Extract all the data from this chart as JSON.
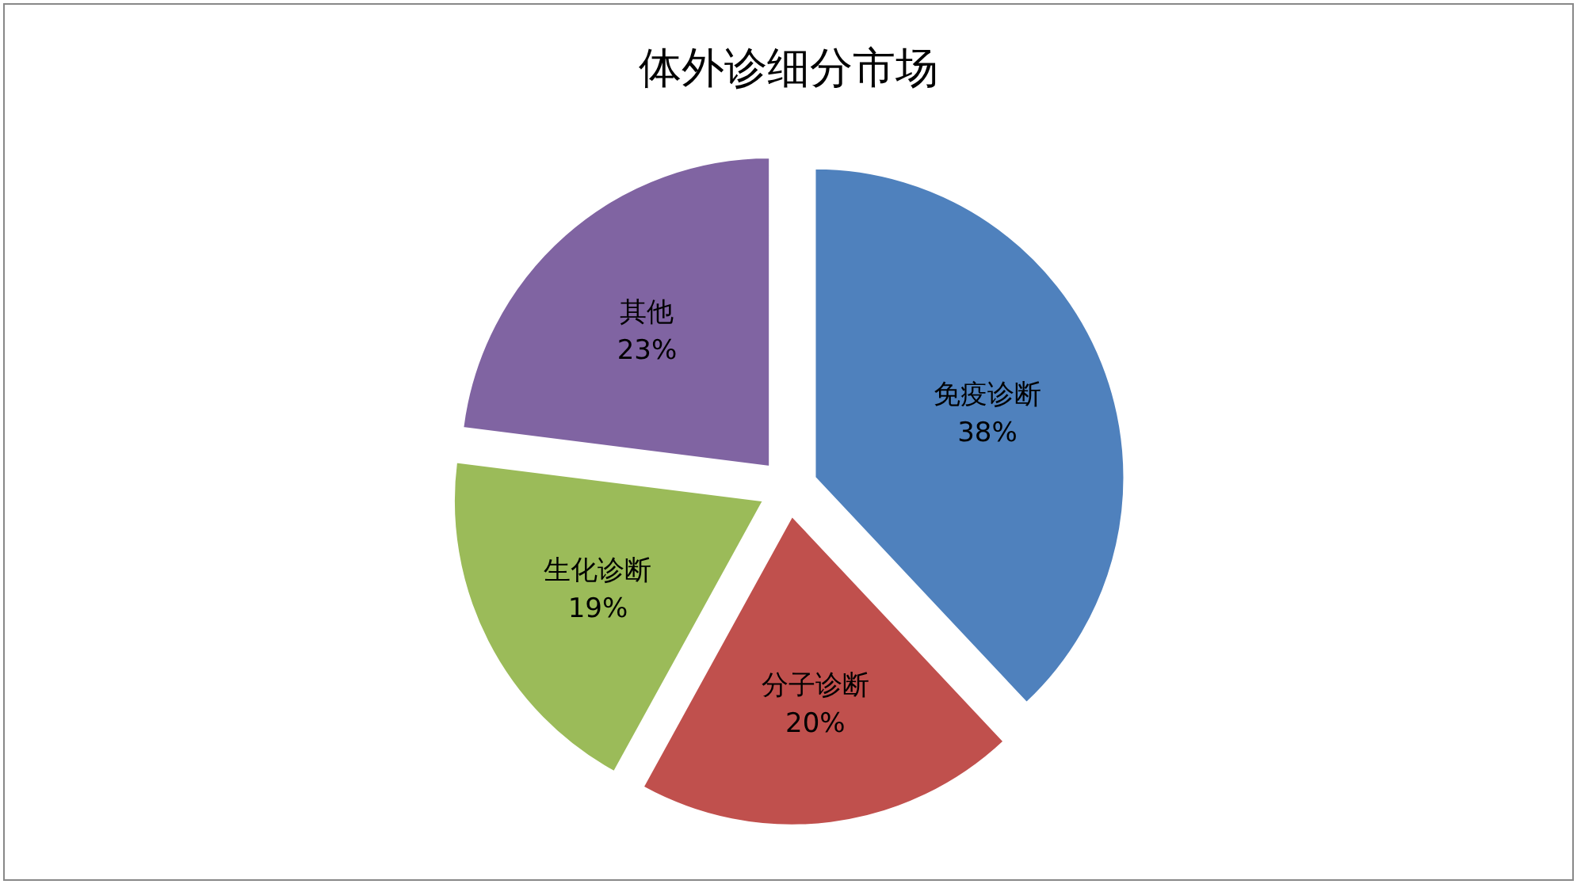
{
  "chart_data": {
    "type": "pie",
    "title": "体外诊细分市场",
    "categories": [
      "免疫诊断",
      "分子诊断",
      "生化诊断",
      "其他"
    ],
    "values": [
      38,
      20,
      19,
      23
    ],
    "colors": [
      "#4f81bd",
      "#c0504d",
      "#9bbb59",
      "#8064a2"
    ],
    "value_labels": [
      "38%",
      "20%",
      "19%",
      "23%"
    ]
  }
}
